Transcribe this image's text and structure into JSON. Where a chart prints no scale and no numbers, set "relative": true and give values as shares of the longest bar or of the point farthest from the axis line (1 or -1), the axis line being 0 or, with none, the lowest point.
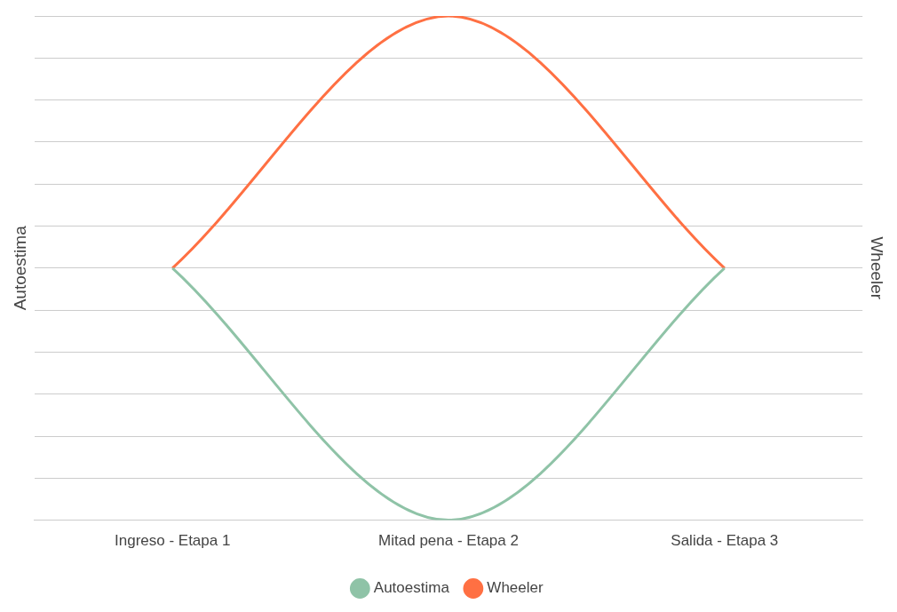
{
  "chart_data": {
    "type": "line",
    "relative": true,
    "ylabel": "Autoestima",
    "y2label": "Wheeler",
    "categories": [
      "Ingreso - Etapa 1",
      "Mitad pena - Etapa 2",
      "Salida - Etapa 3"
    ],
    "series": [
      {
        "name": "Autoestima",
        "color": "#8fc3a7",
        "values": [
          0.5,
          0,
          0.5
        ]
      },
      {
        "name": "Wheeler",
        "color": "#ff7043",
        "values": [
          0.5,
          1,
          0.5
        ],
        "axis": "y2"
      }
    ],
    "grid": "y",
    "legend": "bottom",
    "marker": "none",
    "line_style": "solid"
  }
}
